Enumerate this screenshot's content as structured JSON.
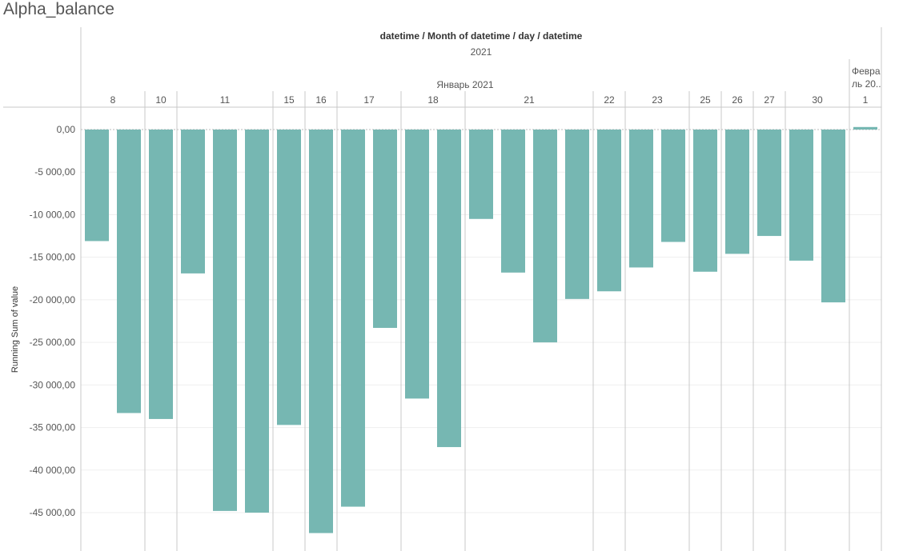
{
  "sheet_title": "Alpha_balance",
  "colors": {
    "bar": "#76b7b2",
    "rule": "#c8c8c8",
    "grid": "#efefef",
    "text": "#555555",
    "zero": "#b8b8b8"
  },
  "chart_data": {
    "type": "bar",
    "column_header": "datetime / Month of datetime / day / datetime",
    "year_label": "2021",
    "months": [
      {
        "label": "Январь 2021",
        "days": [
          {
            "label": "8",
            "values": [
              -13100,
              -33300
            ]
          },
          {
            "label": "10",
            "values": [
              -34000
            ]
          },
          {
            "label": "11",
            "values": [
              -16900,
              -44800,
              -45000
            ]
          },
          {
            "label": "15",
            "values": [
              -34700
            ]
          },
          {
            "label": "16",
            "values": [
              -47400
            ]
          },
          {
            "label": "17",
            "values": [
              -44300,
              -23300
            ]
          },
          {
            "label": "18",
            "values": [
              -31600,
              -37300
            ]
          },
          {
            "label": "21",
            "values": [
              -10500,
              -16800,
              -25000,
              -19900
            ]
          },
          {
            "label": "22",
            "values": [
              -19000
            ]
          },
          {
            "label": "23",
            "values": [
              -16200,
              -13200
            ]
          },
          {
            "label": "25",
            "values": [
              -16700
            ]
          },
          {
            "label": "26",
            "values": [
              -14600
            ]
          },
          {
            "label": "27",
            "values": [
              -12500
            ]
          },
          {
            "label": "30",
            "values": [
              -15400,
              -20300
            ]
          }
        ]
      },
      {
        "label": "Февраль 20..",
        "label_lines": [
          "Февра",
          "ль 20.."
        ],
        "days": [
          {
            "label": "1",
            "values": [
              300
            ]
          }
        ]
      }
    ],
    "ylabel": "Running Sum of value",
    "ylim": [
      -49800,
      1300
    ],
    "yticks": [
      0,
      -5000,
      -10000,
      -15000,
      -20000,
      -25000,
      -30000,
      -35000,
      -40000,
      -45000
    ],
    "ytick_labels": [
      "0,00",
      "-5 000,00",
      "-10 000,00",
      "-15 000,00",
      "-20 000,00",
      "-25 000,00",
      "-30 000,00",
      "-35 000,00",
      "-40 000,00",
      "-45 000,00"
    ],
    "grid": true,
    "legend": "none"
  }
}
